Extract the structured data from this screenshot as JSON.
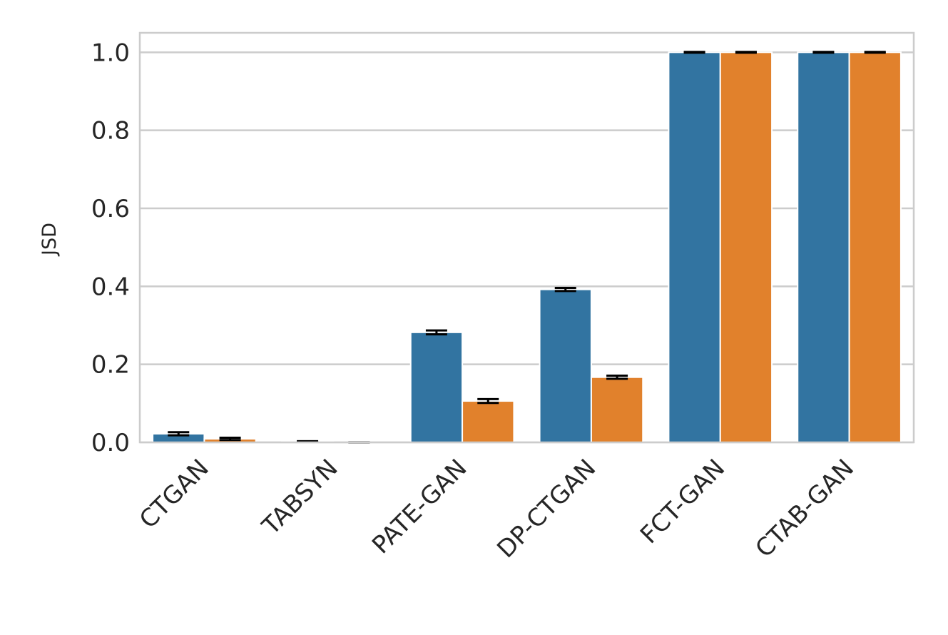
{
  "chart_data": {
    "type": "bar",
    "ylabel": "JSD",
    "categories": [
      "CTGAN",
      "TABSYN",
      "PATE-GAN",
      "DP-CTGAN",
      "FCT-GAN",
      "CTAB-GAN"
    ],
    "series": [
      {
        "color": "#3274a1",
        "values": [
          0.022,
          0.002,
          0.282,
          0.392,
          1.0,
          1.0
        ],
        "errors": [
          0.004,
          0.001,
          0.005,
          0.004,
          0.001,
          0.001
        ]
      },
      {
        "color": "#e1812c",
        "values": [
          0.009,
          0.0,
          0.106,
          0.167,
          1.0,
          1.0
        ],
        "errors": [
          0.003,
          0.0,
          0.005,
          0.004,
          0.001,
          0.001
        ]
      }
    ],
    "ylim": [
      0,
      1.05
    ],
    "yticks": [
      {
        "value": 0,
        "label": "0.0"
      },
      0.2,
      0.4,
      0.6,
      0.8,
      {
        "value": 1,
        "label": "1.0"
      }
    ],
    "grid": true
  }
}
